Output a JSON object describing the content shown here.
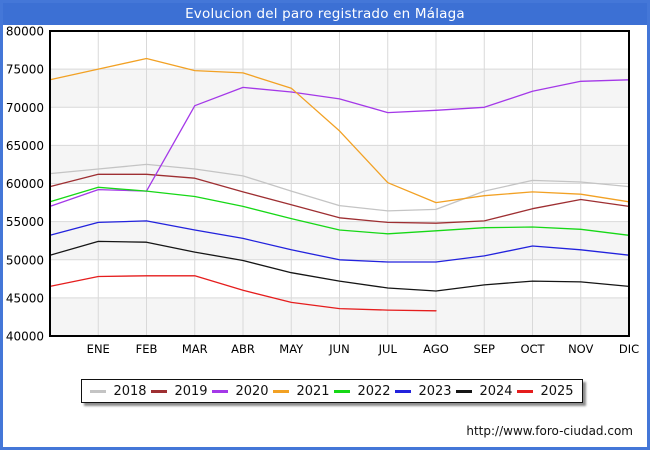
{
  "title": "Evolucion del paro registrado en Málaga",
  "footer": {
    "url": "http://www.foro-ciudad.com"
  },
  "colors": {
    "header_bg": "#3c70d4",
    "outer_border": "#4477d8",
    "grid": "#d9d9d9",
    "band": "#f5f5f5",
    "axis": "#000000"
  },
  "chart_data": {
    "type": "line",
    "title": "Evolucion del paro registrado en Málaga",
    "xlabel": "",
    "ylabel": "",
    "ylim": [
      40000,
      80000
    ],
    "ytick_step": 5000,
    "grid": true,
    "legend_position": "bottom",
    "categories": [
      "ENE",
      "FEB",
      "MAR",
      "ABR",
      "MAY",
      "JUN",
      "JUL",
      "AGO",
      "SEP",
      "OCT",
      "NOV",
      "DIC"
    ],
    "note": "Each series line starts at the left axis with the previous December value (start). 2025 ends in AGO.",
    "series": [
      {
        "name": "2018",
        "color": "#c4c4c4",
        "start": 61300,
        "values": [
          61900,
          62500,
          61900,
          61000,
          59000,
          57100,
          56400,
          56600,
          59000,
          60400,
          60200,
          59600
        ]
      },
      {
        "name": "2019",
        "color": "#9e2f32",
        "start": 59600,
        "values": [
          61200,
          61200,
          60700,
          58900,
          57200,
          55500,
          54900,
          54800,
          55100,
          56700,
          57900,
          57000
        ]
      },
      {
        "name": "2020",
        "color": "#a438e8",
        "start": 57000,
        "values": [
          59200,
          59000,
          70200,
          72600,
          72000,
          71100,
          69300,
          69600,
          70000,
          72100,
          73400,
          73600
        ]
      },
      {
        "name": "2021",
        "color": "#f2a124",
        "start": 73600,
        "values": [
          75000,
          76400,
          74800,
          74500,
          72500,
          66900,
          60100,
          57500,
          58400,
          58900,
          58600,
          57600
        ]
      },
      {
        "name": "2022",
        "color": "#16d816",
        "start": 57600,
        "values": [
          59500,
          59000,
          58300,
          57000,
          55400,
          53900,
          53400,
          53800,
          54200,
          54300,
          54000,
          53200
        ]
      },
      {
        "name": "2023",
        "color": "#2222dd",
        "start": 53200,
        "values": [
          54900,
          55100,
          53900,
          52800,
          51300,
          50000,
          49700,
          49700,
          50500,
          51800,
          51300,
          50600
        ]
      },
      {
        "name": "2024",
        "color": "#151515",
        "start": 50600,
        "values": [
          52400,
          52300,
          51000,
          49900,
          48300,
          47200,
          46300,
          45900,
          46700,
          47200,
          47100,
          46500
        ]
      },
      {
        "name": "2025",
        "color": "#e51d1d",
        "start": 46500,
        "values": [
          47800,
          47900,
          47900,
          46000,
          44400,
          43600,
          43400,
          43300
        ]
      }
    ]
  }
}
